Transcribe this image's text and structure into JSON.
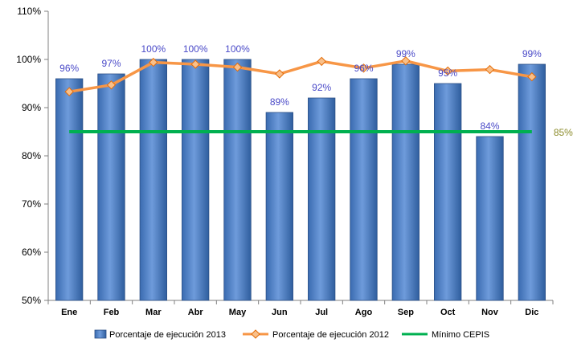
{
  "chart_data": {
    "type": "bar",
    "categories": [
      "Ene",
      "Feb",
      "Mar",
      "Abr",
      "May",
      "Jun",
      "Jul",
      "Ago",
      "Sep",
      "Oct",
      "Nov",
      "Dic"
    ],
    "series": [
      {
        "name": "Porcentaje de ejecución 2013",
        "kind": "bar",
        "color": "#4F81BD",
        "values": [
          96,
          97,
          100,
          100,
          100,
          89,
          92,
          96,
          99,
          95,
          84,
          99
        ],
        "labels": [
          "96%",
          "97%",
          "100%",
          "100%",
          "100%",
          "89%",
          "92%",
          "96%",
          "99%",
          "95%",
          "84%",
          "99%"
        ]
      },
      {
        "name": "Porcentaje de ejecución 2012",
        "kind": "line",
        "marker": "diamond",
        "color": "#F79646",
        "values": [
          93.3,
          94.7,
          99.4,
          99.0,
          98.4,
          97.0,
          99.6,
          98.2,
          99.7,
          97.6,
          97.9,
          96.4
        ]
      },
      {
        "name": "Mínimo CEPIS",
        "kind": "line",
        "color": "#00B050",
        "values": [
          85,
          85,
          85,
          85,
          85,
          85,
          85,
          85,
          85,
          85,
          85,
          85
        ],
        "end_label": "85%"
      }
    ],
    "ylim": [
      50,
      110
    ],
    "yticks": [
      50,
      60,
      70,
      80,
      90,
      100,
      110
    ],
    "ytick_labels": [
      "50%",
      "60%",
      "70%",
      "80%",
      "90%",
      "100%",
      "110%"
    ],
    "legend_position": "bottom",
    "grid": false
  },
  "colors": {
    "label_text": "#4A4AC8",
    "end_label_text": "#8B8B2A",
    "axis": "#808080"
  }
}
